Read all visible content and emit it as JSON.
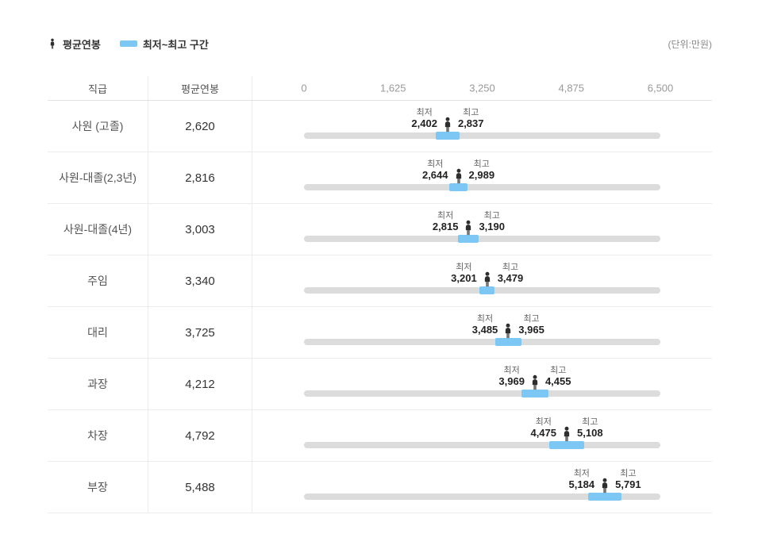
{
  "legend": {
    "avg_label": "평균연봉",
    "range_label": "최저~최고 구간"
  },
  "unit_note": "(단위:만원)",
  "table": {
    "headers": {
      "rank": "직급",
      "avg": "평균연봉"
    }
  },
  "range_caps": {
    "min": "최저",
    "max": "최고"
  },
  "colors": {
    "range_blue": "#7dc7f4",
    "track_gray": "#dcdcdc",
    "icon_black": "#2e2e2e"
  },
  "chart_data": {
    "type": "bar",
    "unit": "만원",
    "axis": {
      "min": 0,
      "max": 6500,
      "tick_labels": [
        "0",
        "1,625",
        "3,250",
        "4,875",
        "6,500"
      ],
      "tick_values": [
        0,
        1625,
        3250,
        4875,
        6500
      ]
    },
    "legend_entries": [
      "평균연봉",
      "최저~최고 구간"
    ],
    "rows": [
      {
        "rank": "사원 (고졸)",
        "avg": 2620,
        "min": 2402,
        "max": 2837,
        "avg_label": "2,620",
        "min_label": "2,402",
        "max_label": "2,837"
      },
      {
        "rank": "사원-대졸(2,3년)",
        "avg": 2816,
        "min": 2644,
        "max": 2989,
        "avg_label": "2,816",
        "min_label": "2,644",
        "max_label": "2,989"
      },
      {
        "rank": "사원-대졸(4년)",
        "avg": 3003,
        "min": 2815,
        "max": 3190,
        "avg_label": "3,003",
        "min_label": "2,815",
        "max_label": "3,190"
      },
      {
        "rank": "주임",
        "avg": 3340,
        "min": 3201,
        "max": 3479,
        "avg_label": "3,340",
        "min_label": "3,201",
        "max_label": "3,479"
      },
      {
        "rank": "대리",
        "avg": 3725,
        "min": 3485,
        "max": 3965,
        "avg_label": "3,725",
        "min_label": "3,485",
        "max_label": "3,965"
      },
      {
        "rank": "과장",
        "avg": 4212,
        "min": 3969,
        "max": 4455,
        "avg_label": "4,212",
        "min_label": "3,969",
        "max_label": "4,455"
      },
      {
        "rank": "차장",
        "avg": 4792,
        "min": 4475,
        "max": 5108,
        "avg_label": "4,792",
        "min_label": "4,475",
        "max_label": "5,108"
      },
      {
        "rank": "부장",
        "avg": 5488,
        "min": 5184,
        "max": 5791,
        "avg_label": "5,488",
        "min_label": "5,184",
        "max_label": "5,791"
      }
    ]
  }
}
